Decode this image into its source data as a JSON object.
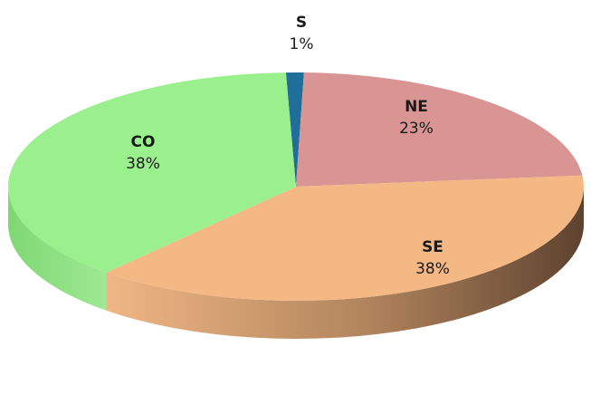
{
  "chart_data": {
    "type": "pie",
    "three_d": true,
    "legend": "none",
    "slices": [
      {
        "label": "S",
        "value": 1,
        "display": "1%",
        "color": "#1f6f9a",
        "side": "#175474"
      },
      {
        "label": "NE",
        "value": 23,
        "display": "23%",
        "color": "#d99594",
        "side": "#b07372"
      },
      {
        "label": "SE",
        "value": 38,
        "display": "38%",
        "color": "#f4b885",
        "side": "#7b5a3f"
      },
      {
        "label": "CO",
        "value": 38,
        "display": "38%",
        "color": "#99f08d",
        "side": "#74cf6a"
      }
    ]
  }
}
